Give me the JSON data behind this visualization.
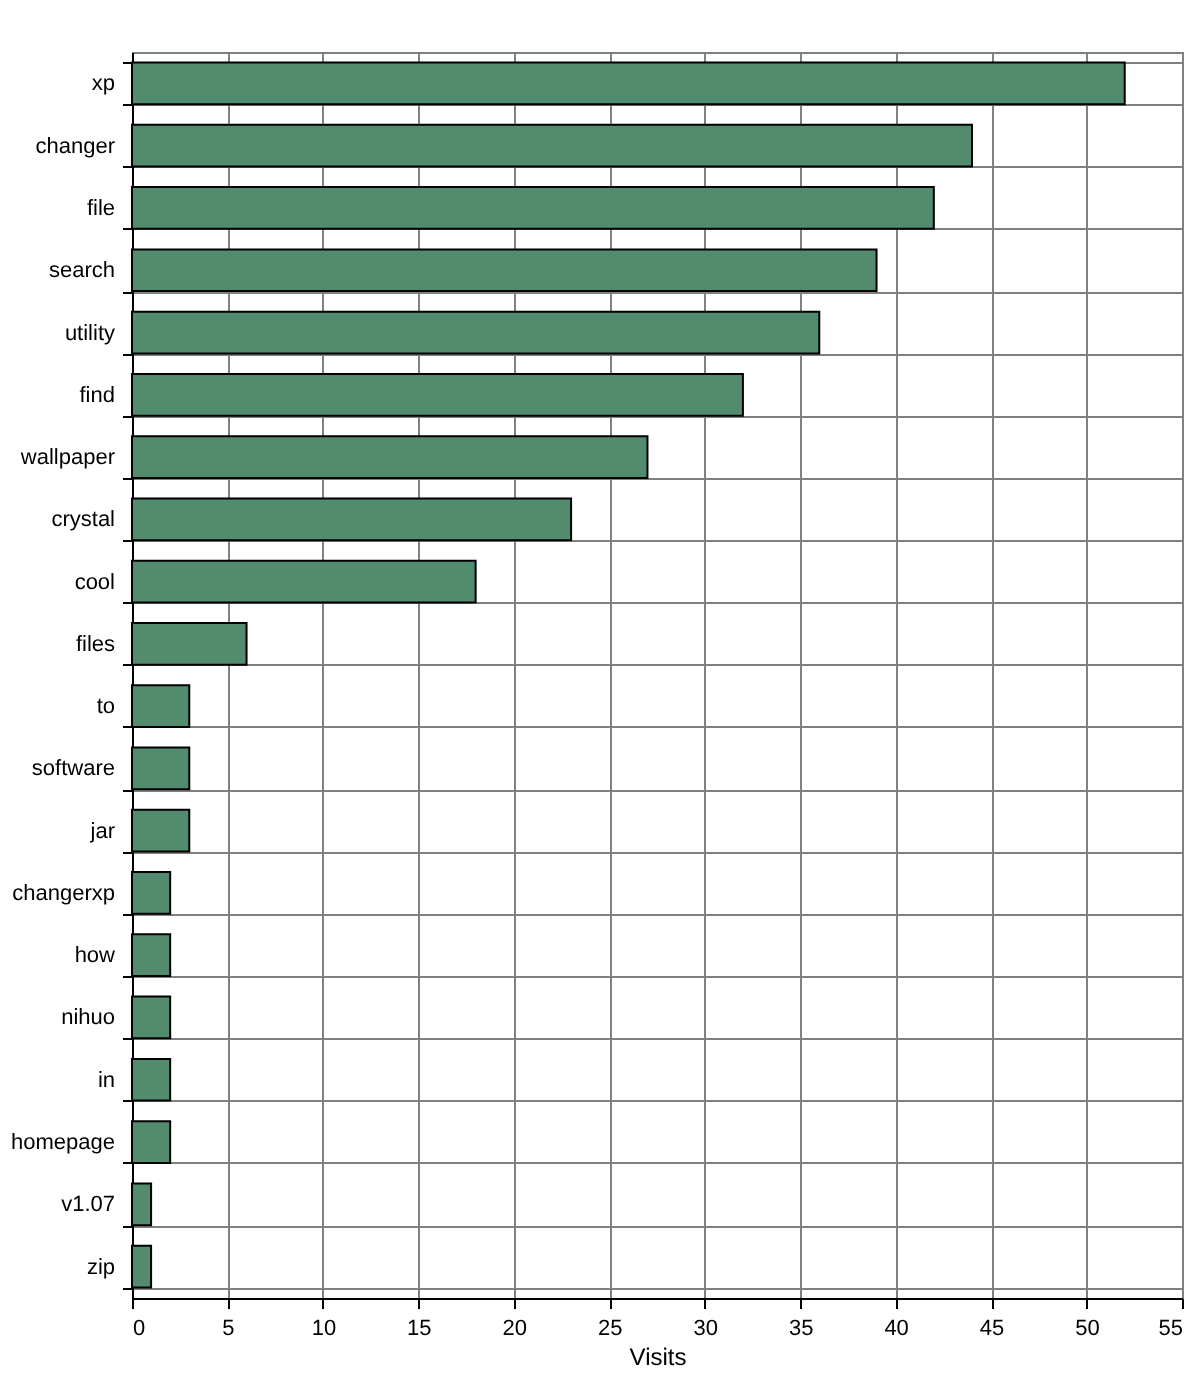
{
  "chart_data": {
    "type": "bar",
    "orientation": "horizontal",
    "xlabel": "Visits",
    "categories": [
      "xp",
      "changer",
      "file",
      "search",
      "utility",
      "find",
      "wallpaper",
      "crystal",
      "cool",
      "files",
      "to",
      "software",
      "jar",
      "changerxp",
      "how",
      "nihuo",
      "in",
      "homepage",
      "v1.07",
      "zip"
    ],
    "values": [
      52,
      44,
      42,
      39,
      36,
      32,
      27,
      23,
      18,
      6,
      3,
      3,
      3,
      2,
      2,
      2,
      2,
      2,
      1,
      1
    ],
    "color": "#528b6e",
    "xlim": [
      0,
      55
    ],
    "xticks": [
      0,
      5,
      10,
      15,
      20,
      25,
      30,
      35,
      40,
      45,
      50,
      55
    ],
    "grid": true
  }
}
